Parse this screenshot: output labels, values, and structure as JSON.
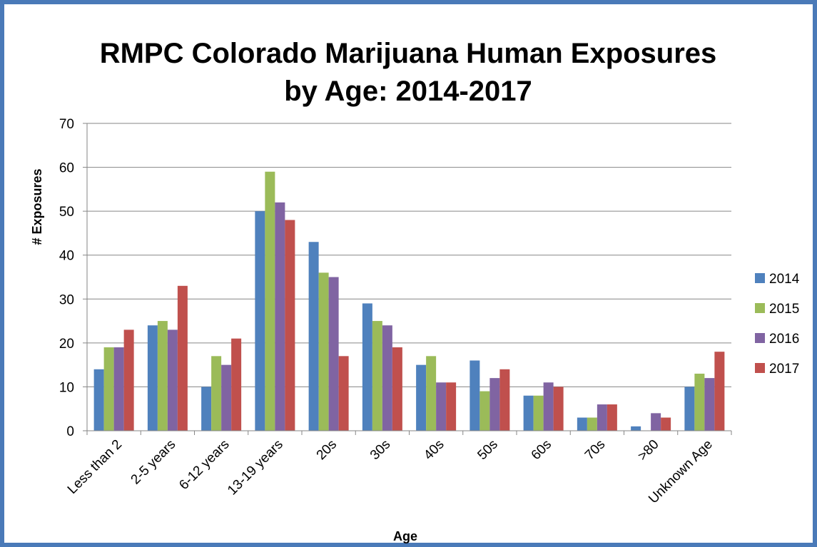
{
  "chart_data": {
    "type": "bar",
    "title_line1": "RMPC Colorado Marijuana Human Exposures",
    "title_line2": "by Age: 2014-2017",
    "xlabel": "Age",
    "ylabel": "# Exposures",
    "ylim": [
      0,
      70
    ],
    "yticks": [
      "0",
      "10",
      "20",
      "30",
      "40",
      "50",
      "60",
      "70"
    ],
    "grid": true,
    "legend_position": "right",
    "categories": [
      "Less than 2",
      "2-5 years",
      "6-12 years",
      "13-19 years",
      "20s",
      "30s",
      "40s",
      "50s",
      "60s",
      "70s",
      ">80",
      "Unknown Age"
    ],
    "series": [
      {
        "name": "2014",
        "color": "#4f81bd",
        "values": [
          14,
          24,
          10,
          50,
          43,
          29,
          15,
          16,
          8,
          3,
          1,
          10
        ]
      },
      {
        "name": "2015",
        "color": "#9bbb59",
        "values": [
          19,
          25,
          17,
          59,
          36,
          25,
          17,
          9,
          8,
          3,
          0,
          13
        ]
      },
      {
        "name": "2016",
        "color": "#8064a2",
        "values": [
          19,
          23,
          15,
          52,
          35,
          24,
          11,
          12,
          11,
          6,
          4,
          12
        ]
      },
      {
        "name": "2017",
        "color": "#c0504d",
        "values": [
          23,
          33,
          21,
          48,
          17,
          19,
          11,
          14,
          10,
          6,
          3,
          18
        ]
      }
    ]
  }
}
